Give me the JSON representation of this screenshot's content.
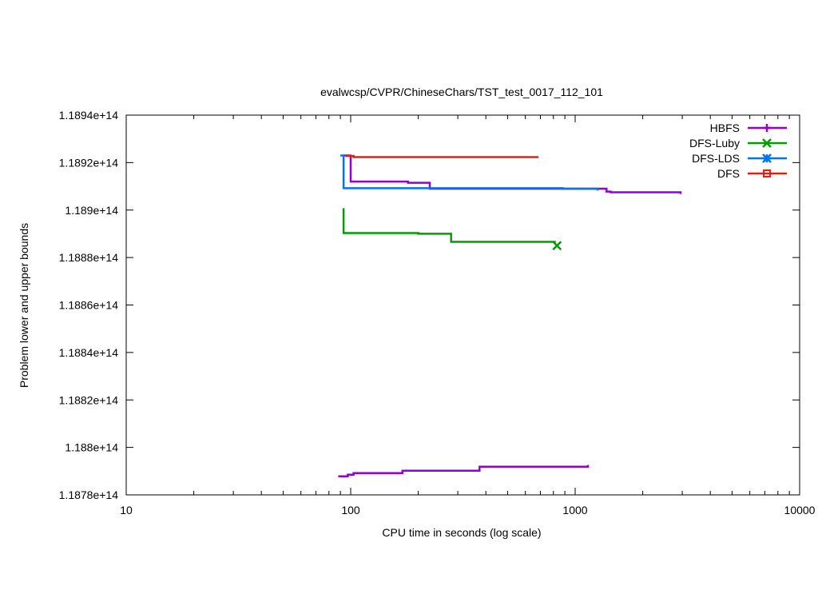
{
  "chart_data": {
    "type": "line",
    "title": "evalwcsp/CVPR/ChineseChars/TST_test_0017_112_101",
    "xlabel": "CPU time in seconds (log scale)",
    "ylabel": "Problem lower and upper bounds",
    "xscale": "log",
    "xlim": [
      10,
      10000
    ],
    "ylim": [
      118780000000000,
      118940000000000
    ],
    "x_ticks": [
      10,
      100,
      1000,
      10000
    ],
    "x_tick_labels": [
      "10",
      "100",
      "1000",
      "10000"
    ],
    "y_ticks": [
      118780000000000,
      118800000000000,
      118820000000000,
      118840000000000,
      118860000000000,
      118880000000000,
      118900000000000,
      118920000000000,
      118940000000000
    ],
    "y_tick_labels": [
      "1.1878e+14",
      "1.188e+14",
      "1.1882e+14",
      "1.1884e+14",
      "1.1886e+14",
      "1.1888e+14",
      "1.189e+14",
      "1.1892e+14",
      "1.1894e+14"
    ],
    "grid": false,
    "legend_position": "top-right",
    "series": [
      {
        "name": "HBFS",
        "color": "#9400d3",
        "marker": "plus",
        "segments": [
          [
            [
              93,
              118923000000000
            ],
            [
              100,
              118923000000000
            ],
            [
              100,
              118912000000000
            ],
            [
              180,
              118912000000000
            ],
            [
              180,
              118911500000000
            ],
            [
              225,
              118911500000000
            ],
            [
              225,
              118909000000000
            ],
            [
              1380,
              118909000000000
            ],
            [
              1380,
              118907800000000
            ],
            [
              1440,
              118907800000000
            ],
            [
              1440,
              118907500000000
            ],
            [
              2950,
              118907500000000
            ],
            [
              2950,
              118906800000000
            ]
          ],
          [
            [
              88,
              118787800000000
            ],
            [
              97,
              118787800000000
            ],
            [
              97,
              118788500000000
            ],
            [
              103,
              118788500000000
            ],
            [
              103,
              118789200000000
            ],
            [
              170,
              118789200000000
            ],
            [
              170,
              118790200000000
            ],
            [
              375,
              118790200000000
            ],
            [
              375,
              118791900000000
            ],
            [
              1140,
              118791900000000
            ],
            [
              1140,
              118792600000000
            ]
          ]
        ]
      },
      {
        "name": "DFS-Luby",
        "color": "#009e00",
        "marker": "cross",
        "segments": [
          [
            [
              93,
              118900800000000
            ],
            [
              93,
              118890300000000
            ],
            [
              200,
              118890300000000
            ],
            [
              200,
              118890000000000
            ],
            [
              280,
              118890000000000
            ],
            [
              280,
              118886600000000
            ],
            [
              820,
              118886600000000
            ]
          ]
        ],
        "end_marker": [
          830,
          118885000000000
        ]
      },
      {
        "name": "DFS-LDS",
        "color": "#0072ff",
        "marker": "asterisk",
        "segments": [
          [
            [
              90,
              118923000000000
            ],
            [
              93,
              118923000000000
            ],
            [
              93,
              118909200000000
            ],
            [
              880,
              118909200000000
            ],
            [
              880,
              118909000000000
            ],
            [
              1260,
              118909000000000
            ],
            [
              1260,
              118908200000000
            ]
          ]
        ]
      },
      {
        "name": "DFS",
        "color": "#e51e10",
        "marker": "square",
        "segments": [
          [
            [
              95,
              118922800000000
            ],
            [
              103,
              118922800000000
            ],
            [
              103,
              118922300000000
            ],
            [
              680,
              118922300000000
            ],
            [
              680,
              118922700000000
            ]
          ]
        ]
      }
    ]
  }
}
